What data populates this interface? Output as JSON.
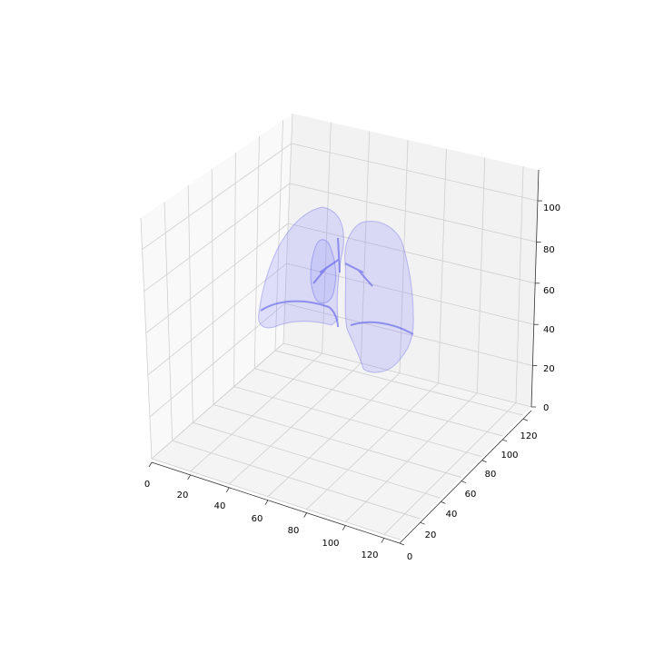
{
  "chart_data": {
    "type": "surface3d",
    "title": "",
    "xlabel": "",
    "ylabel": "",
    "zlabel": "",
    "xlim": [
      0,
      128
    ],
    "ylim": [
      0,
      128
    ],
    "zlim": [
      0,
      115
    ],
    "grid": true,
    "legend": "none",
    "x_ticks": [
      "0",
      "20",
      "40",
      "60",
      "80",
      "100",
      "120"
    ],
    "y_ticks": [
      "0",
      "20",
      "40",
      "60",
      "80",
      "100",
      "120"
    ],
    "z_ticks": [
      "0",
      "20",
      "40",
      "60",
      "80",
      "100"
    ],
    "surface_color": "#8080ff",
    "surface_edge_color": "#5a5ae8",
    "pane_colors": {
      "left": "#f9f9f9",
      "back": "#f2f2f2",
      "floor": "#f4f4f4",
      "grid": "#cfcfcf"
    }
  }
}
